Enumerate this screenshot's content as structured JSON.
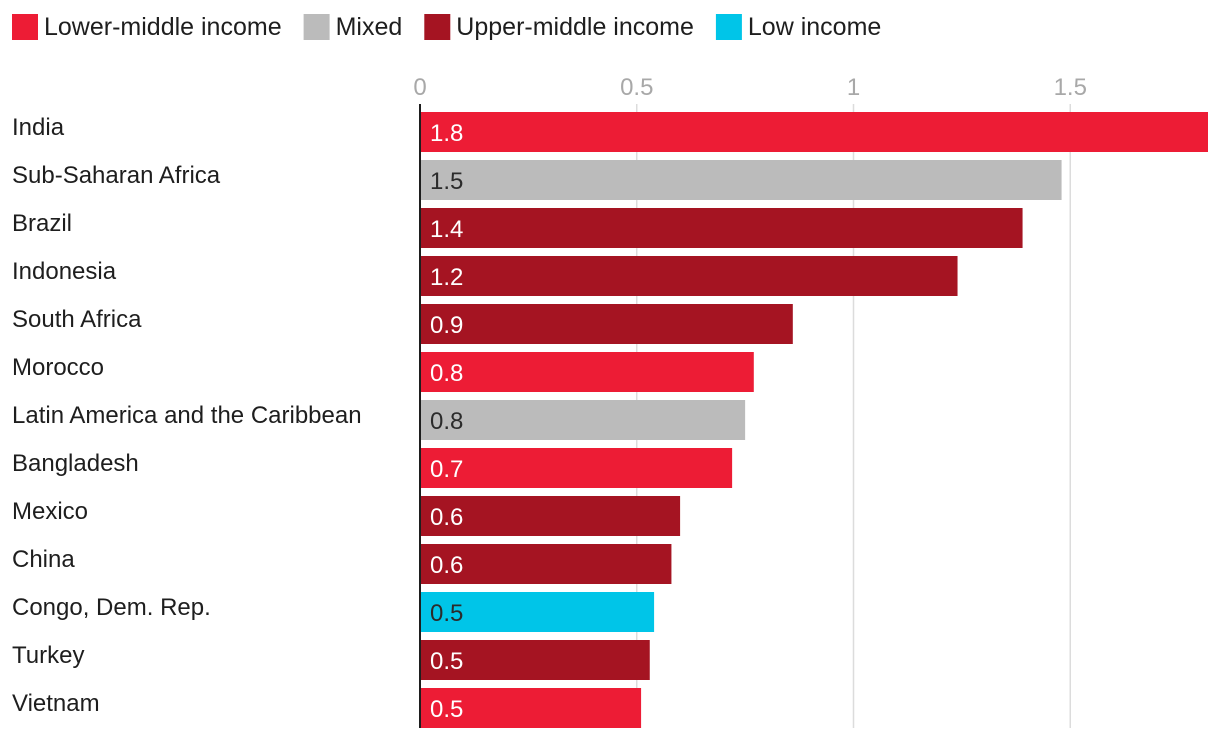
{
  "chart_data": {
    "type": "bar",
    "orientation": "horizontal",
    "title": "",
    "xlabel": "",
    "ylabel": "",
    "xlim": [
      0,
      1.82
    ],
    "ticks": [
      0,
      0.5,
      1,
      1.5
    ],
    "tick_labels": [
      "0",
      "0.5",
      "1",
      "1.5"
    ],
    "grid": true,
    "legend_position": "top-left",
    "legend": [
      {
        "key": "lower_middle",
        "label": "Lower-middle income",
        "color": "#ed1c35"
      },
      {
        "key": "mixed",
        "label": "Mixed",
        "color": "#bbbbbb"
      },
      {
        "key": "upper_middle",
        "label": "Upper-middle income",
        "color": "#a51422"
      },
      {
        "key": "low",
        "label": "Low income",
        "color": "#00c5e8"
      }
    ],
    "categories": [
      "India",
      "Sub-Saharan Africa",
      "Brazil",
      "Indonesia",
      "South Africa",
      "Morocco",
      "Latin America and the Caribbean",
      "Bangladesh",
      "Mexico",
      "China",
      "Congo, Dem. Rep.",
      "Turkey",
      "Vietnam"
    ],
    "values": [
      1.82,
      1.48,
      1.39,
      1.24,
      0.86,
      0.77,
      0.75,
      0.72,
      0.6,
      0.58,
      0.54,
      0.53,
      0.51
    ],
    "value_labels": [
      "1.8",
      "1.5",
      "1.4",
      "1.2",
      "0.9",
      "0.8",
      "0.8",
      "0.7",
      "0.6",
      "0.6",
      "0.5",
      "0.5",
      "0.5"
    ],
    "groups": [
      "lower_middle",
      "mixed",
      "upper_middle",
      "upper_middle",
      "upper_middle",
      "lower_middle",
      "mixed",
      "lower_middle",
      "upper_middle",
      "upper_middle",
      "low",
      "upper_middle",
      "lower_middle"
    ],
    "label_colors": {
      "lower_middle": "#ffffff",
      "mixed": "#2b2b2b",
      "upper_middle": "#ffffff",
      "low": "#2b2b2b"
    }
  }
}
